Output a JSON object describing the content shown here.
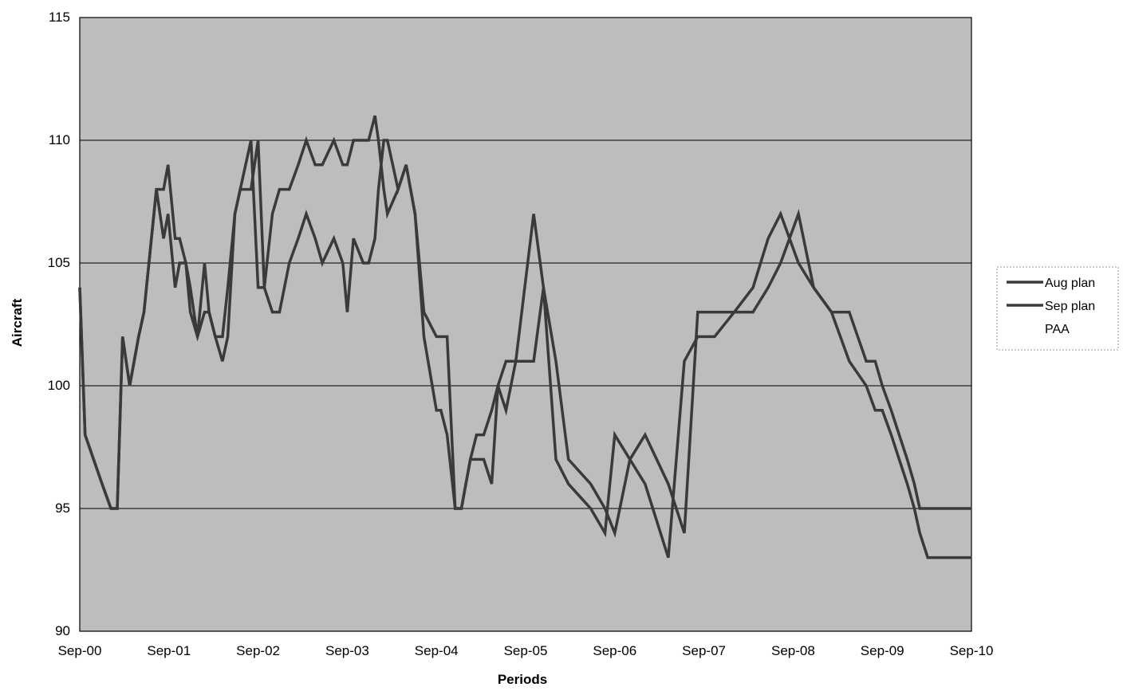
{
  "chart_data": {
    "type": "line",
    "title": "",
    "xlabel": "Periods",
    "ylabel": "Aircraft",
    "ylim": [
      90,
      115
    ],
    "yticks": [
      90,
      95,
      100,
      105,
      110,
      115
    ],
    "xticks": [
      "Sep-00",
      "Sep-01",
      "Sep-02",
      "Sep-03",
      "Sep-04",
      "Sep-05",
      "Sep-06",
      "Sep-07",
      "Sep-08",
      "Sep-09",
      "Sep-10"
    ],
    "x_unit": "fiscal year (Sep-00 = 0)",
    "grid": "horizontal",
    "legend_position": "right",
    "colors": {
      "plot_bg": "#bdbdbd",
      "line": "#3a3a3a",
      "grid": "#000000"
    },
    "series": [
      {
        "name": "Aug plan",
        "x": [
          0.0,
          0.06,
          0.25,
          0.35,
          0.42,
          0.48,
          0.56,
          0.66,
          0.72,
          0.86,
          0.94,
          0.99,
          1.07,
          1.12,
          1.19,
          1.24,
          1.32,
          1.4,
          1.45,
          1.52,
          1.6,
          1.66,
          1.74,
          1.8,
          1.92,
          2.0,
          2.07,
          2.16,
          2.24,
          2.35,
          2.45,
          2.54,
          2.64,
          2.72,
          2.85,
          2.95,
          3.0,
          3.07,
          3.18,
          3.24,
          3.31,
          3.35,
          3.41,
          3.45,
          3.57,
          3.66,
          3.76,
          3.86,
          4.0,
          4.05,
          4.12,
          4.21,
          4.28,
          4.33,
          4.38,
          4.45,
          4.53,
          4.62,
          4.69,
          4.78,
          4.89,
          5.09,
          5.2,
          5.34,
          5.48,
          5.73,
          5.89,
          6.0,
          6.17,
          6.34,
          6.6,
          6.78,
          6.93,
          7.12,
          7.34,
          7.55,
          7.72,
          7.86,
          8.06,
          8.23,
          8.43,
          8.63,
          8.82,
          8.92,
          9.0,
          9.1,
          9.19,
          9.28,
          9.36,
          9.42,
          9.51,
          9.6,
          9.69,
          9.79,
          9.92,
          10.0
        ],
        "y": [
          104,
          98,
          96,
          95,
          95,
          102,
          100,
          102,
          103,
          108,
          106,
          107,
          104,
          105,
          105,
          103,
          102,
          103,
          103,
          102,
          101,
          102,
          107,
          108,
          108,
          110,
          104,
          103,
          103,
          105,
          106,
          107,
          106,
          105,
          106,
          105,
          103,
          106,
          105,
          105,
          106,
          108,
          110,
          110,
          108,
          109,
          107,
          103,
          102,
          102,
          102,
          95,
          95,
          96,
          97,
          97,
          97,
          96,
          100,
          99,
          101,
          101,
          104,
          101,
          97,
          96,
          95,
          94,
          97,
          98,
          96,
          94,
          103,
          103,
          103,
          103,
          104,
          105,
          107,
          104,
          103,
          103,
          101,
          101,
          100,
          99,
          98,
          97,
          96,
          95,
          95,
          95,
          95,
          95,
          95,
          95
        ]
      },
      {
        "name": "Sep plan",
        "x": [
          0.0,
          0.06,
          0.25,
          0.35,
          0.42,
          0.48,
          0.56,
          0.66,
          0.72,
          0.86,
          0.94,
          0.99,
          1.07,
          1.12,
          1.19,
          1.24,
          1.32,
          1.4,
          1.45,
          1.52,
          1.6,
          1.66,
          1.74,
          1.8,
          1.92,
          2.0,
          2.07,
          2.16,
          2.24,
          2.35,
          2.45,
          2.54,
          2.64,
          2.72,
          2.85,
          2.95,
          3.0,
          3.07,
          3.18,
          3.24,
          3.31,
          3.35,
          3.41,
          3.45,
          3.57,
          3.66,
          3.76,
          3.86,
          4.0,
          4.05,
          4.12,
          4.21,
          4.28,
          4.33,
          4.38,
          4.45,
          4.53,
          4.62,
          4.69,
          4.78,
          4.89,
          5.09,
          5.2,
          5.34,
          5.48,
          5.73,
          5.89,
          6.0,
          6.17,
          6.34,
          6.6,
          6.78,
          6.93,
          7.12,
          7.34,
          7.55,
          7.72,
          7.86,
          8.06,
          8.23,
          8.43,
          8.63,
          8.82,
          8.92,
          9.0,
          9.1,
          9.19,
          9.28,
          9.36,
          9.42,
          9.51,
          9.6,
          9.69,
          9.79,
          9.92,
          10.0
        ],
        "y": [
          104,
          98,
          96,
          95,
          95,
          102,
          100,
          102,
          103,
          108,
          108,
          109,
          106,
          106,
          105,
          104,
          102,
          105,
          103,
          102,
          102,
          104,
          107,
          108,
          110,
          104,
          104,
          107,
          108,
          108,
          109,
          110,
          109,
          109,
          110,
          109,
          109,
          110,
          110,
          110,
          111,
          110,
          108,
          107,
          108,
          109,
          107,
          102,
          99,
          99,
          98,
          95,
          95,
          96,
          97,
          98,
          98,
          99,
          100,
          101,
          101,
          107,
          104,
          97,
          96,
          95,
          94,
          98,
          97,
          96,
          93,
          101,
          102,
          102,
          103,
          104,
          106,
          107,
          105,
          104,
          103,
          101,
          100,
          99,
          99,
          98,
          97,
          96,
          95,
          94,
          93,
          93,
          93,
          93,
          93,
          93
        ]
      },
      {
        "name": "PAA",
        "x": [],
        "y": []
      }
    ]
  }
}
